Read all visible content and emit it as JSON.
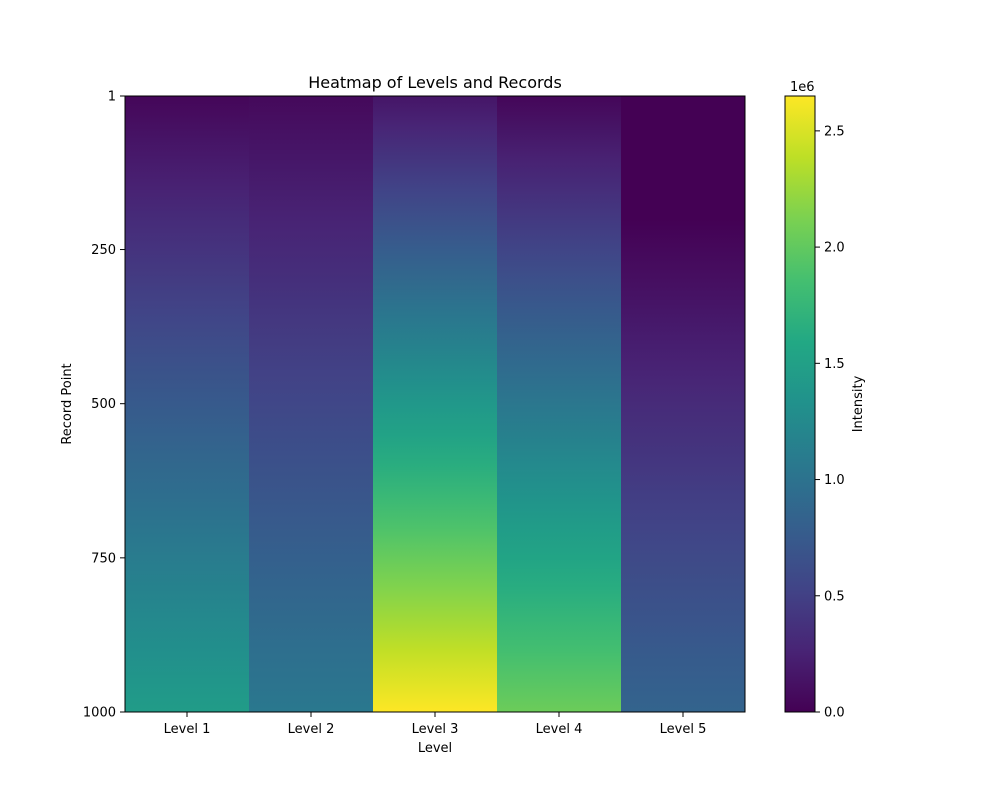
{
  "chart_data": {
    "type": "heatmap",
    "title": "Heatmap of Levels and Records",
    "xlabel": "Level",
    "ylabel": "Record Point",
    "categories": [
      "Level 1",
      "Level 2",
      "Level 3",
      "Level 4",
      "Level 5"
    ],
    "y_ticks": [
      1,
      250,
      500,
      750,
      1000
    ],
    "y_range": [
      1,
      1000
    ],
    "grid": false,
    "colormap": "viridis",
    "colorbar": {
      "label": "Intensity",
      "min": 0,
      "max": 2650000,
      "ticks": [
        0,
        500000,
        1000000,
        1500000,
        2000000,
        2500000
      ],
      "tick_labels": [
        "0.0",
        "0.5",
        "1.0",
        "1.5",
        "2.0",
        "2.5"
      ],
      "offset_text": "1e6"
    },
    "series": [
      {
        "values": [
          [
            1,
            40000
          ],
          [
            1000,
            1450000
          ]
        ]
      },
      {
        "values": [
          [
            1,
            60000
          ],
          [
            1000,
            1060000
          ]
        ]
      },
      {
        "values": [
          [
            1,
            150000
          ],
          [
            1000,
            2650000
          ]
        ]
      },
      {
        "values": [
          [
            1,
            40000
          ],
          [
            1000,
            2050000
          ]
        ]
      },
      {
        "values": [
          [
            1,
            0
          ],
          [
            200,
            0
          ],
          [
            1000,
            850000
          ]
        ]
      }
    ]
  }
}
